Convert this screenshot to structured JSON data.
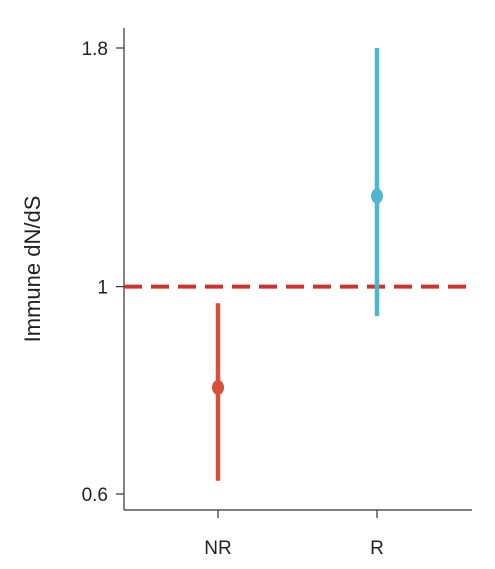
{
  "chart_data": {
    "type": "errorbar",
    "ylabel": "Immune dN/dS",
    "xlabel": "",
    "categories": [
      "NR",
      "R"
    ],
    "yscale": "log",
    "ylim": [
      0.6,
      1.8
    ],
    "yticks": [
      0.6,
      1,
      1.8
    ],
    "ytick_labels": [
      "0.6",
      "1",
      "1.8"
    ],
    "points": [
      {
        "category": "NR",
        "value": 0.78,
        "lower": 0.62,
        "upper": 0.96,
        "color": "#d94f3b"
      },
      {
        "category": "R",
        "value": 1.25,
        "lower": 0.93,
        "upper": 1.8,
        "color": "#4bb8cf"
      }
    ],
    "reference_line": {
      "value": 1,
      "style": "dashed",
      "color": "#d0312d"
    },
    "grid": false,
    "legend": false
  }
}
